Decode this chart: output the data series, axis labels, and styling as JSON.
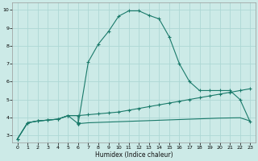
{
  "xlabel": "Humidex (Indice chaleur)",
  "background_color": "#cceae7",
  "grid_color": "#add8d5",
  "line_color": "#1a7a6a",
  "xlim": [
    -0.5,
    23.5
  ],
  "ylim": [
    2.6,
    10.4
  ],
  "xticks": [
    0,
    1,
    2,
    3,
    4,
    5,
    6,
    7,
    8,
    9,
    10,
    11,
    12,
    13,
    14,
    15,
    16,
    17,
    18,
    19,
    20,
    21,
    22,
    23
  ],
  "yticks": [
    3,
    4,
    5,
    6,
    7,
    8,
    9,
    10
  ],
  "line1_x": [
    0,
    1,
    2,
    3,
    4,
    5,
    6,
    7,
    8,
    9,
    10,
    11,
    12,
    13,
    14,
    15,
    16,
    17,
    18,
    19,
    20,
    21,
    22,
    23
  ],
  "line1_y": [
    2.8,
    3.7,
    3.8,
    3.85,
    3.9,
    4.1,
    3.65,
    7.1,
    8.1,
    8.8,
    9.65,
    9.95,
    9.95,
    9.7,
    9.5,
    8.5,
    7.0,
    6.0,
    5.5,
    5.5,
    5.5,
    5.5,
    5.0,
    3.75
  ],
  "line2_x": [
    0,
    1,
    2,
    3,
    4,
    5,
    6,
    7,
    8,
    9,
    10,
    11,
    12,
    13,
    14,
    15,
    16,
    17,
    18,
    19,
    20,
    21,
    22,
    23
  ],
  "line2_y": [
    2.8,
    3.7,
    3.8,
    3.85,
    3.9,
    4.1,
    4.1,
    4.15,
    4.2,
    4.25,
    4.3,
    4.4,
    4.5,
    4.6,
    4.7,
    4.8,
    4.9,
    5.0,
    5.1,
    5.2,
    5.3,
    5.4,
    5.5,
    5.6
  ],
  "line3_x": [
    0,
    1,
    2,
    3,
    4,
    5,
    6,
    6,
    7,
    8,
    9,
    10,
    11,
    12,
    13,
    14,
    15,
    16,
    17,
    18,
    19,
    20,
    21,
    22,
    23
  ],
  "line3_y": [
    2.8,
    3.7,
    3.8,
    3.85,
    3.9,
    4.1,
    4.1,
    3.65,
    3.7,
    3.72,
    3.74,
    3.76,
    3.78,
    3.8,
    3.82,
    3.84,
    3.86,
    3.88,
    3.9,
    3.92,
    3.94,
    3.96,
    3.97,
    3.98,
    3.8
  ]
}
